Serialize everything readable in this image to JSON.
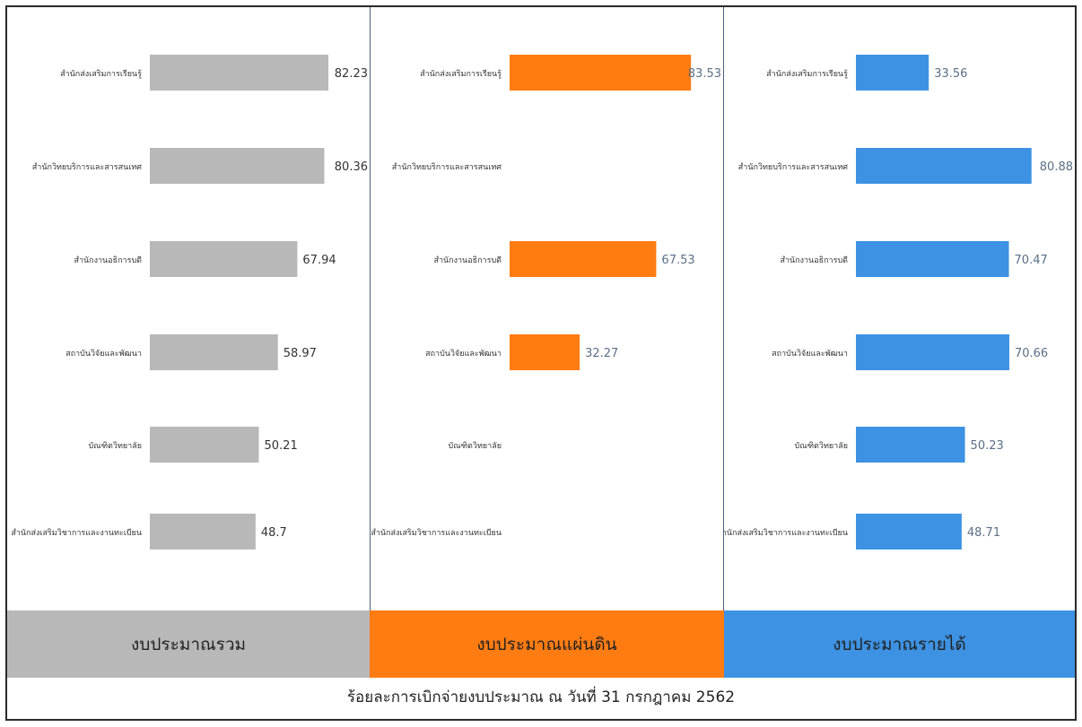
{
  "caption": "ร้อยละการเบิกจ่ายงบประมาณ ณ วันที่ 31 กรกฎาคม 2562",
  "chart_data": [
    {
      "type": "bar",
      "orientation": "horizontal",
      "title": "งบประมาณรวม",
      "color": "#b8b8b8",
      "categories": [
        "สำนักส่งเสริมการเรียนรู้",
        "สำนักวิทยบริการและสารสนเทศ",
        "สำนักงานอธิการบดี",
        "สถาบันวิจัยและพัฒนา",
        "บัณฑิตวิทยาลัย",
        "สำนักส่งเสริมวิชาการและงานทะเบียน"
      ],
      "values": [
        82.23,
        80.36,
        67.94,
        58.97,
        50.21,
        48.7
      ],
      "labels": [
        "82.23",
        "80.36",
        "67.94",
        "58.97",
        "50.21",
        "48.7"
      ]
    },
    {
      "type": "bar",
      "orientation": "horizontal",
      "title": "งบประมาณแผ่นดิน",
      "color": "#fe7c12",
      "categories": [
        "สำนักส่งเสริมการเรียนรู้",
        "สำนักวิทยบริการและสารสนเทศ",
        "สำนักงานอธิการบดี",
        "สถาบันวิจัยและพัฒนา",
        "บัณฑิตวิทยาลัย",
        "สำนักส่งเสริมวิชาการและงานทะเบียน"
      ],
      "values": [
        83.53,
        null,
        67.53,
        32.27,
        null,
        null
      ],
      "labels": [
        "83.53",
        "",
        "67.53",
        "32.27",
        "",
        ""
      ]
    },
    {
      "type": "bar",
      "orientation": "horizontal",
      "title": "งบประมาณรายได้",
      "color": "#3d92e3",
      "categories": [
        "สำนักส่งเสริมการเรียนรู้",
        "สำนักวิทยบริการและสารสนเทศ",
        "สำนักงานอธิการบดี",
        "สถาบันวิจัยและพัฒนา",
        "บัณฑิตวิทยาลัย",
        "สำนักส่งเสริมวิชาการและงานทะเบียน"
      ],
      "values": [
        33.56,
        80.88,
        70.47,
        70.66,
        50.23,
        48.71
      ],
      "labels": [
        "33.56",
        "80.88",
        "70.47",
        "70.66",
        "50.23",
        "48.71"
      ]
    }
  ]
}
